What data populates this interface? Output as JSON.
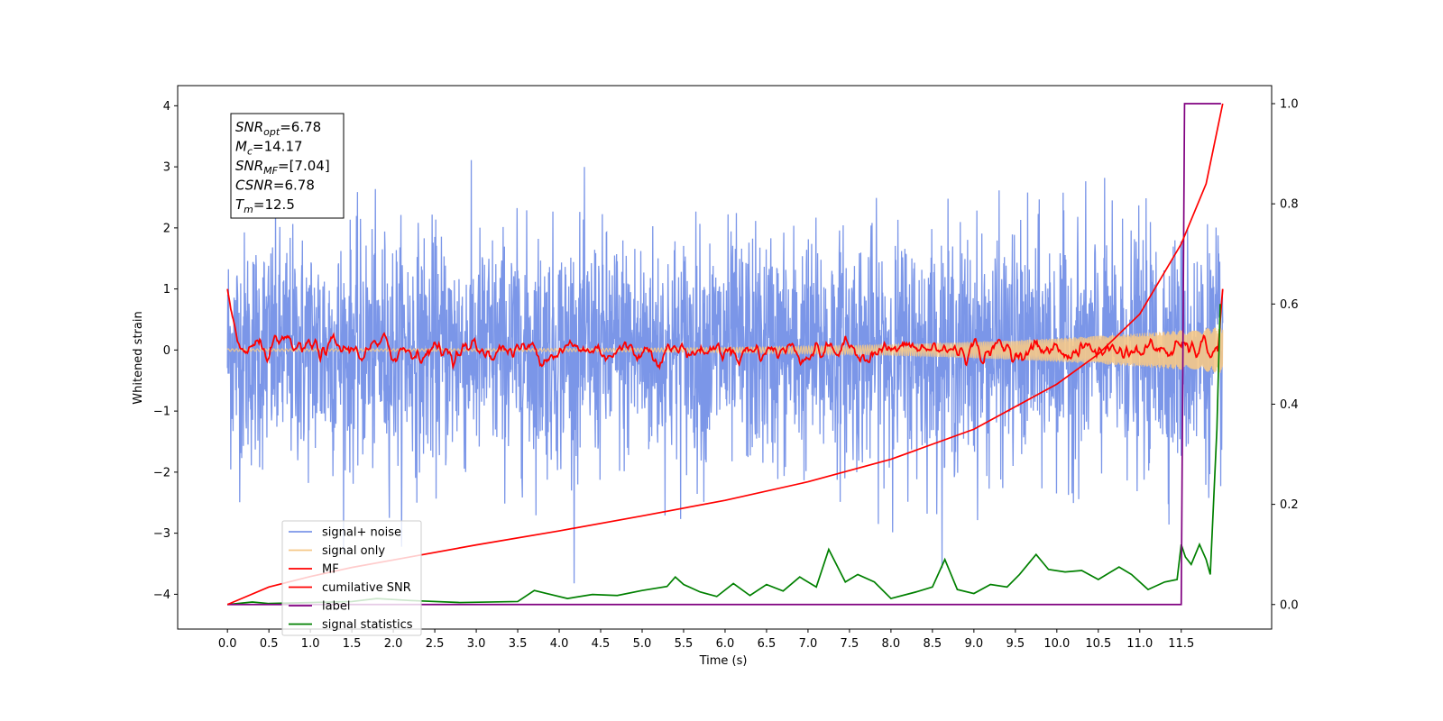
{
  "chart_data": {
    "type": "line",
    "title": "",
    "xlabel": "Time (s)",
    "ylabel": "Whitened strain",
    "xlim": [
      -0.6,
      12.59
    ],
    "ylim": [
      -4.57,
      4.33
    ],
    "y2lim": [
      -0.049,
      1.036
    ],
    "grid": false,
    "legend_position": "lower-left",
    "x_ticks": [
      "0.0",
      "0.5",
      "1.0",
      "1.5",
      "2.0",
      "2.5",
      "3.0",
      "3.5",
      "4.0",
      "4.5",
      "5.0",
      "5.5",
      "6.0",
      "6.5",
      "7.0",
      "7.5",
      "8.0",
      "8.5",
      "9.0",
      "9.5",
      "10.0",
      "10.5",
      "11.0",
      "11.5"
    ],
    "y_ticks": [
      "4",
      "3",
      "2",
      "1",
      "0",
      "−1",
      "−2",
      "−3",
      "−4"
    ],
    "y2_ticks": [
      "1.0",
      "0.8",
      "0.6",
      "0.4",
      "0.2",
      "0.0"
    ],
    "info_box": [
      {
        "sym": "SNR",
        "sub": "opt",
        "val": "=6.78"
      },
      {
        "sym": "M",
        "sub": "c",
        "val": "=14.17"
      },
      {
        "sym": "SNR",
        "sub": "MF",
        "val": "=[7.04]"
      },
      {
        "sym": "CSNR",
        "sub": "",
        "val": "=6.78"
      },
      {
        "sym": "T",
        "sub": "m",
        "val": "=12.5"
      }
    ],
    "series": [
      {
        "name": "signal+ noise",
        "color": "#7b96e8",
        "axis": "left",
        "description_kind": "noise",
        "t_start": 0.0,
        "t_end": 12.0,
        "std": 1.0
      },
      {
        "name": "signal only",
        "color": "#f5c888",
        "axis": "left",
        "description_kind": "chirp_envelope",
        "t_start": 0.0,
        "t_end": 12.0,
        "amplitude_start": 0.02,
        "amplitude_end": 0.38
      },
      {
        "name": "MF",
        "color": "#ff0000",
        "axis": "left",
        "description_kind": "filtered",
        "t_start": 0.0,
        "t_end": 12.0,
        "start_value": 1.0,
        "end_value": 1.0
      },
      {
        "name": "cumilative SNR",
        "color": "#ff0000",
        "axis": "right",
        "x": [
          0.0,
          0.5,
          1.0,
          1.5,
          2.0,
          3.0,
          4.0,
          5.0,
          6.0,
          7.0,
          8.0,
          9.0,
          10.0,
          10.5,
          11.0,
          11.5,
          11.8,
          12.0
        ],
        "y": [
          0.0,
          0.035,
          0.056,
          0.074,
          0.089,
          0.119,
          0.147,
          0.177,
          0.208,
          0.245,
          0.29,
          0.35,
          0.44,
          0.5,
          0.58,
          0.72,
          0.84,
          1.0
        ]
      },
      {
        "name": "label",
        "color": "#800080",
        "axis": "right",
        "x": [
          0.0,
          11.5,
          11.54,
          11.98
        ],
        "y": [
          0.0,
          0.0,
          1.0,
          1.0
        ]
      },
      {
        "name": "signal statistics",
        "color": "#008000",
        "axis": "right",
        "x": [
          0.0,
          0.3,
          0.5,
          1.0,
          1.5,
          1.8,
          2.2,
          2.8,
          3.5,
          3.7,
          3.85,
          4.1,
          4.4,
          4.7,
          5.0,
          5.3,
          5.4,
          5.5,
          5.7,
          5.9,
          6.1,
          6.3,
          6.5,
          6.7,
          6.9,
          7.1,
          7.25,
          7.45,
          7.6,
          7.8,
          8.0,
          8.3,
          8.5,
          8.65,
          8.8,
          9.0,
          9.2,
          9.4,
          9.55,
          9.75,
          9.9,
          10.1,
          10.3,
          10.5,
          10.75,
          10.9,
          11.1,
          11.3,
          11.45,
          11.5,
          11.55,
          11.62,
          11.72,
          11.8,
          11.85,
          11.93,
          11.97
        ],
        "y": [
          0.0,
          0.005,
          0.002,
          0.004,
          0.006,
          0.012,
          0.008,
          0.004,
          0.006,
          0.028,
          0.022,
          0.012,
          0.02,
          0.018,
          0.028,
          0.036,
          0.055,
          0.04,
          0.025,
          0.016,
          0.042,
          0.018,
          0.04,
          0.027,
          0.055,
          0.035,
          0.11,
          0.045,
          0.06,
          0.045,
          0.012,
          0.025,
          0.035,
          0.09,
          0.03,
          0.022,
          0.04,
          0.035,
          0.06,
          0.1,
          0.07,
          0.065,
          0.068,
          0.05,
          0.075,
          0.06,
          0.03,
          0.045,
          0.05,
          0.12,
          0.095,
          0.08,
          0.12,
          0.09,
          0.06,
          0.35,
          0.6
        ]
      }
    ]
  }
}
